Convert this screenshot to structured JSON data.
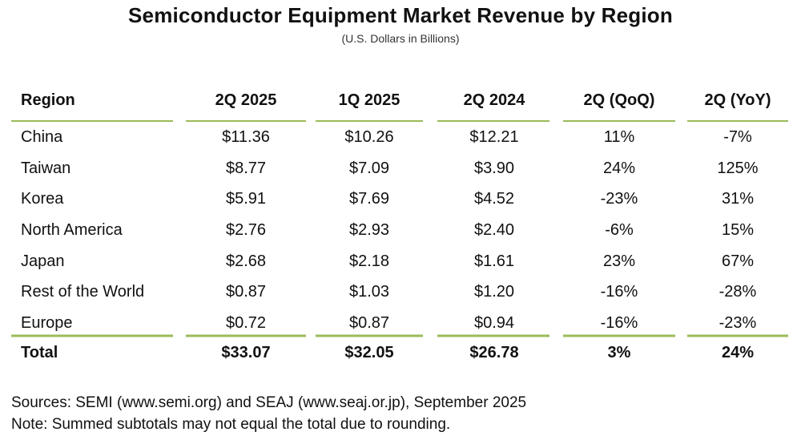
{
  "chart_data": {
    "type": "table",
    "title": "Semiconductor Equipment Market Revenue by Region",
    "subtitle": "(U.S. Dollars in Billions)",
    "columns": [
      "Region",
      "2Q 2025",
      "1Q 2025",
      "2Q 2024",
      "2Q (QoQ)",
      "2Q (YoY)"
    ],
    "rows": [
      [
        "China",
        "$11.36",
        "$10.26",
        "$12.21",
        "11%",
        "-7%"
      ],
      [
        "Taiwan",
        "$8.77",
        "$7.09",
        "$3.90",
        "24%",
        "125%"
      ],
      [
        "Korea",
        "$5.91",
        "$7.69",
        "$4.52",
        "-23%",
        "31%"
      ],
      [
        "North America",
        "$2.76",
        "$2.93",
        "$2.40",
        "-6%",
        "15%"
      ],
      [
        "Japan",
        "$2.68",
        "$2.18",
        "$1.61",
        "23%",
        "67%"
      ],
      [
        "Rest of the World",
        "$0.87",
        "$1.03",
        "$1.20",
        "-16%",
        "-28%"
      ],
      [
        "Europe",
        "$0.72",
        "$0.87",
        "$0.94",
        "-16%",
        "-23%"
      ]
    ],
    "total": [
      "Total",
      "$33.07",
      "$32.05",
      "$26.78",
      "3%",
      "24%"
    ],
    "rule_color": "#9bbb59"
  },
  "footer": {
    "sources": "Sources: SEMI (www.semi.org) and SEAJ (www.seaj.or.jp), September 2025",
    "note": "Note: Summed subtotals may not equal the total due to rounding."
  }
}
